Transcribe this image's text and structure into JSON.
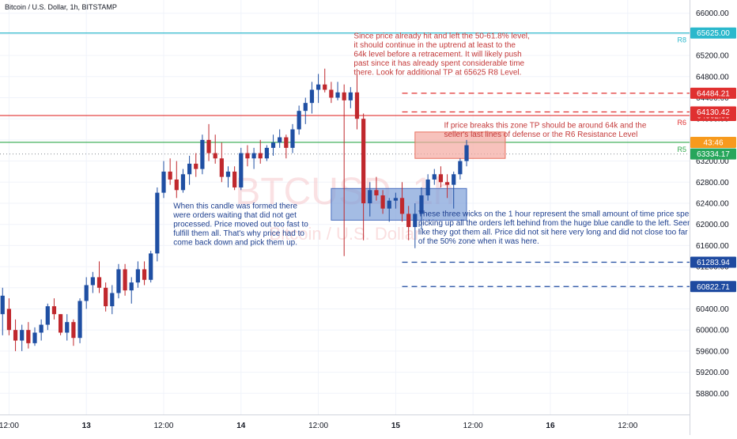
{
  "header": {
    "title": "Bitcoin / U.S. Dollar, 1h, BITSTAMP"
  },
  "watermark": {
    "main": "BTCUSD, 1h",
    "sub": "Bitcoin / U.S. Dollar"
  },
  "colors": {
    "bull": "#1f4fa3",
    "bear": "#c0282d",
    "support": "#1e4aa0",
    "resistance": "#e03030",
    "r8": "#2bb8cc",
    "r5": "#2ea84a",
    "annotation_red": "#c43a3a",
    "annotation_blue": "#1d3f8f"
  },
  "chart_data": {
    "type": "candlestick",
    "title": "Bitcoin / U.S. Dollar, 1h, BITSTAMP",
    "ylim": [
      58400,
      66250
    ],
    "y_ticks": [
      58800,
      59200,
      59600,
      60000,
      60400,
      60800,
      61200,
      61600,
      62000,
      62400,
      62800,
      63200,
      63600,
      64000,
      64400,
      64800,
      65200,
      65600,
      66000
    ],
    "y_tick_labels": [
      "58800.00",
      "59200.00",
      "59600.00",
      "60000.00",
      "60400.00",
      "60800.00",
      "61200.00",
      "61600.00",
      "62000.00",
      "62400.00",
      "62800.00",
      "63200.00",
      "63600.00",
      "64000.00",
      "64400.00",
      "64800.00",
      "65200.00",
      "65600.00",
      "66000.00"
    ],
    "x_ticks": [
      {
        "label": "12:00",
        "t": 0
      },
      {
        "label": "13",
        "t": 12,
        "bold": true
      },
      {
        "label": "12:00",
        "t": 24
      },
      {
        "label": "14",
        "t": 36,
        "bold": true
      },
      {
        "label": "12:00",
        "t": 48
      },
      {
        "label": "15",
        "t": 60,
        "bold": true
      },
      {
        "label": "12:00",
        "t": 72
      },
      {
        "label": "16",
        "t": 84,
        "bold": true
      },
      {
        "label": "12:00",
        "t": 96
      }
    ],
    "x_range": [
      -1.4,
      105.6
    ],
    "candles": [
      {
        "t": -1,
        "o": 60300,
        "h": 60800,
        "l": 59900,
        "c": 60650
      },
      {
        "t": 0,
        "o": 60400,
        "h": 60600,
        "l": 59900,
        "c": 60000
      },
      {
        "t": 1,
        "o": 60000,
        "h": 60200,
        "l": 59600,
        "c": 59800
      },
      {
        "t": 2,
        "o": 59800,
        "h": 60100,
        "l": 59600,
        "c": 60000
      },
      {
        "t": 3,
        "o": 60000,
        "h": 60150,
        "l": 59650,
        "c": 59750
      },
      {
        "t": 4,
        "o": 59750,
        "h": 60050,
        "l": 59700,
        "c": 59950
      },
      {
        "t": 5,
        "o": 59950,
        "h": 60200,
        "l": 59800,
        "c": 60100
      },
      {
        "t": 6,
        "o": 60100,
        "h": 60500,
        "l": 60000,
        "c": 60450
      },
      {
        "t": 7,
        "o": 60450,
        "h": 60600,
        "l": 60200,
        "c": 60300
      },
      {
        "t": 8,
        "o": 60300,
        "h": 60300,
        "l": 59900,
        "c": 59950
      },
      {
        "t": 9,
        "o": 59950,
        "h": 60300,
        "l": 59800,
        "c": 60150
      },
      {
        "t": 10,
        "o": 60150,
        "h": 60200,
        "l": 59700,
        "c": 59850
      },
      {
        "t": 11,
        "o": 59850,
        "h": 60600,
        "l": 59750,
        "c": 60550
      },
      {
        "t": 12,
        "o": 60550,
        "h": 61000,
        "l": 60400,
        "c": 60850
      },
      {
        "t": 13,
        "o": 60850,
        "h": 61100,
        "l": 60700,
        "c": 61000
      },
      {
        "t": 14,
        "o": 61000,
        "h": 61300,
        "l": 60700,
        "c": 60800
      },
      {
        "t": 15,
        "o": 60800,
        "h": 60900,
        "l": 60350,
        "c": 60450
      },
      {
        "t": 16,
        "o": 60450,
        "h": 60850,
        "l": 60300,
        "c": 60700
      },
      {
        "t": 17,
        "o": 60700,
        "h": 61250,
        "l": 60600,
        "c": 61150
      },
      {
        "t": 18,
        "o": 61150,
        "h": 61250,
        "l": 60650,
        "c": 60750
      },
      {
        "t": 19,
        "o": 60750,
        "h": 61000,
        "l": 60500,
        "c": 60900
      },
      {
        "t": 20,
        "o": 60900,
        "h": 61300,
        "l": 60800,
        "c": 61150
      },
      {
        "t": 21,
        "o": 61150,
        "h": 61300,
        "l": 60850,
        "c": 60950
      },
      {
        "t": 22,
        "o": 60950,
        "h": 61500,
        "l": 60900,
        "c": 61450
      },
      {
        "t": 23,
        "o": 61450,
        "h": 62700,
        "l": 61300,
        "c": 62600
      },
      {
        "t": 24,
        "o": 62600,
        "h": 63200,
        "l": 62500,
        "c": 63000
      },
      {
        "t": 25,
        "o": 63000,
        "h": 63250,
        "l": 62750,
        "c": 62850
      },
      {
        "t": 26,
        "o": 62850,
        "h": 63200,
        "l": 62500,
        "c": 62650
      },
      {
        "t": 27,
        "o": 62650,
        "h": 63050,
        "l": 62600,
        "c": 62950
      },
      {
        "t": 28,
        "o": 62950,
        "h": 63300,
        "l": 62750,
        "c": 63150
      },
      {
        "t": 29,
        "o": 63150,
        "h": 63350,
        "l": 62900,
        "c": 63050
      },
      {
        "t": 30,
        "o": 63050,
        "h": 63700,
        "l": 62950,
        "c": 63600
      },
      {
        "t": 31,
        "o": 63600,
        "h": 63900,
        "l": 63200,
        "c": 63350
      },
      {
        "t": 32,
        "o": 63350,
        "h": 63700,
        "l": 63150,
        "c": 63250
      },
      {
        "t": 33,
        "o": 63250,
        "h": 63550,
        "l": 62800,
        "c": 62900
      },
      {
        "t": 34,
        "o": 62900,
        "h": 63100,
        "l": 62700,
        "c": 63000
      },
      {
        "t": 35,
        "o": 63000,
        "h": 63100,
        "l": 62650,
        "c": 62700
      },
      {
        "t": 36,
        "o": 62700,
        "h": 63450,
        "l": 62650,
        "c": 63350
      },
      {
        "t": 37,
        "o": 63350,
        "h": 63500,
        "l": 63100,
        "c": 63250
      },
      {
        "t": 38,
        "o": 63250,
        "h": 63450,
        "l": 63050,
        "c": 63350
      },
      {
        "t": 39,
        "o": 63350,
        "h": 63600,
        "l": 63150,
        "c": 63250
      },
      {
        "t": 40,
        "o": 63250,
        "h": 63500,
        "l": 63200,
        "c": 63450
      },
      {
        "t": 41,
        "o": 63450,
        "h": 63700,
        "l": 63300,
        "c": 63550
      },
      {
        "t": 42,
        "o": 63550,
        "h": 63800,
        "l": 63450,
        "c": 63650
      },
      {
        "t": 43,
        "o": 63650,
        "h": 63700,
        "l": 63250,
        "c": 63450
      },
      {
        "t": 44,
        "o": 63450,
        "h": 63900,
        "l": 63350,
        "c": 63800
      },
      {
        "t": 45,
        "o": 63800,
        "h": 64250,
        "l": 63700,
        "c": 64150
      },
      {
        "t": 46,
        "o": 64150,
        "h": 64400,
        "l": 63900,
        "c": 64300
      },
      {
        "t": 47,
        "o": 64300,
        "h": 64700,
        "l": 64100,
        "c": 64550
      },
      {
        "t": 48,
        "o": 64550,
        "h": 64850,
        "l": 64300,
        "c": 64650
      },
      {
        "t": 49,
        "o": 64650,
        "h": 64950,
        "l": 64500,
        "c": 64550
      },
      {
        "t": 50,
        "o": 64550,
        "h": 64700,
        "l": 64300,
        "c": 64400
      },
      {
        "t": 51,
        "o": 64400,
        "h": 64700,
        "l": 64350,
        "c": 64500
      },
      {
        "t": 52,
        "o": 64500,
        "h": 64650,
        "l": 61400,
        "c": 64350
      },
      {
        "t": 53,
        "o": 64350,
        "h": 64600,
        "l": 64200,
        "c": 64500
      },
      {
        "t": 54,
        "o": 64500,
        "h": 64850,
        "l": 63800,
        "c": 64000
      },
      {
        "t": 55,
        "o": 64000,
        "h": 64100,
        "l": 61700,
        "c": 62400
      },
      {
        "t": 56,
        "o": 62400,
        "h": 62800,
        "l": 62150,
        "c": 62650
      },
      {
        "t": 57,
        "o": 62650,
        "h": 62900,
        "l": 62450,
        "c": 62550
      },
      {
        "t": 58,
        "o": 62550,
        "h": 62650,
        "l": 62200,
        "c": 62300
      },
      {
        "t": 59,
        "o": 62300,
        "h": 62500,
        "l": 62050,
        "c": 62450
      },
      {
        "t": 60,
        "o": 62450,
        "h": 62600,
        "l": 62300,
        "c": 62500
      },
      {
        "t": 61,
        "o": 62500,
        "h": 62800,
        "l": 62050,
        "c": 62200
      },
      {
        "t": 62,
        "o": 62200,
        "h": 62350,
        "l": 61700,
        "c": 61950
      },
      {
        "t": 63,
        "o": 61950,
        "h": 62400,
        "l": 61550,
        "c": 62200
      },
      {
        "t": 64,
        "o": 62200,
        "h": 62700,
        "l": 61900,
        "c": 62550
      },
      {
        "t": 65,
        "o": 62550,
        "h": 62950,
        "l": 62450,
        "c": 62850
      },
      {
        "t": 66,
        "o": 62850,
        "h": 63050,
        "l": 62750,
        "c": 62950
      },
      {
        "t": 67,
        "o": 62950,
        "h": 63100,
        "l": 62700,
        "c": 62800
      },
      {
        "t": 68,
        "o": 62800,
        "h": 62950,
        "l": 62500,
        "c": 62750
      },
      {
        "t": 69,
        "o": 62750,
        "h": 63000,
        "l": 62300,
        "c": 62950
      },
      {
        "t": 70,
        "o": 62950,
        "h": 63250,
        "l": 62850,
        "c": 63200
      },
      {
        "t": 71,
        "o": 63200,
        "h": 63600,
        "l": 63100,
        "c": 63500
      }
    ],
    "levels": [
      {
        "value": 65625,
        "color": "#2bb8cc",
        "style": "solid",
        "x_start": -1.4,
        "tag": "R8",
        "price_label": "65625.00",
        "label_color": "#2bb8cc"
      },
      {
        "value": 64062,
        "color": "#e03030",
        "style": "solid",
        "x_start": -1.4,
        "tag": "R6",
        "price_label": "64062.00",
        "label_color": "#e03030"
      },
      {
        "value": 63554,
        "color": "#2ea84a",
        "style": "solid",
        "x_start": -1.4,
        "tag": "R5",
        "price_label": "43:46",
        "label_color": "#f79a1d"
      },
      {
        "value": 63334.17,
        "color": "#9aa0a6",
        "style": "dotted",
        "x_start": -1.4,
        "tag": "",
        "price_label": "63334.17",
        "label_color": "#26a65b"
      },
      {
        "value": 64484.21,
        "color": "#e03030",
        "style": "dashed",
        "x_start": 61,
        "tag": "",
        "price_label": "64484.21",
        "label_color": "#e03030"
      },
      {
        "value": 64130.42,
        "color": "#e03030",
        "style": "dashed",
        "x_start": 61,
        "tag": "",
        "price_label": "64130.42",
        "label_color": "#e03030"
      },
      {
        "value": 61283.94,
        "color": "#1e4aa0",
        "style": "dashed",
        "x_start": 61,
        "tag": "",
        "price_label": "61283.94",
        "label_color": "#1e4aa0"
      },
      {
        "value": 60822.71,
        "color": "#1e4aa0",
        "style": "dashed",
        "x_start": 61,
        "tag": "",
        "price_label": "60822.71",
        "label_color": "#1e4aa0"
      }
    ],
    "zones": [
      {
        "name": "sell-zone",
        "x0": 63,
        "x1": 77,
        "y0": 63250,
        "y1": 63750,
        "fill": "#f4a8a0",
        "stroke": "#e8705f"
      },
      {
        "name": "buy-zone",
        "x0": 50,
        "x1": 71,
        "y0": 62080,
        "y1": 62680,
        "fill": "#7ea0d8",
        "stroke": "#4a6fbf"
      }
    ],
    "annotations": [
      {
        "text": "Since price already hit and left the 50-61.8% level,\nit should continue in the uptrend at least to the\n64k level before a retracement. It will likely push\npast since it has already spent considerable time\nthere. Look for additional TP at 65625 R8 Level.",
        "t": 53.5,
        "price": 65520,
        "color": "#c43a3a"
      },
      {
        "text": "If price breaks this zone TP should be around 64k and the\nseller's last lines of defense or the R6 Resistance Level",
        "t": 67.5,
        "price": 63830,
        "color": "#c43a3a"
      },
      {
        "text": "When this candle was formed there\nwere orders waiting that did not get\nprocessed. Price moved out too fast to\nfulfill them all. That's why price had to\ncome back down and pick them up.",
        "t": 25.5,
        "price": 62300,
        "color": "#1d3f8f"
      },
      {
        "text": "These three wicks on the 1 hour represent the small amount of time price spent here\npicking up all the orders left behind from the huge blue candle to the left. Seems\nlike they got them all. Price did not sit here very long and did not close too far out\nof the 50% zone when it was here.",
        "t": 63.5,
        "price": 62150,
        "color": "#1d3f8f"
      }
    ]
  }
}
